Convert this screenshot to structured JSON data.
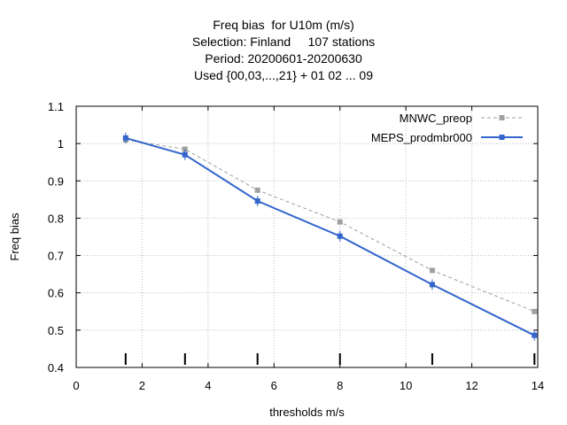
{
  "title_lines": [
    "Freq bias  for U10m (m/s)",
    "Selection: Finland     107 stations",
    "Period: 20200601-20200630",
    "Used {00,03,...,21} + 01 02 ... 09"
  ],
  "chart_data": {
    "type": "line",
    "xlabel": "thresholds m/s",
    "ylabel": "Freq bias",
    "xlim": [
      0,
      14
    ],
    "ylim": [
      0.4,
      1.1
    ],
    "xticks": [
      "0",
      "2",
      "4",
      "6",
      "8",
      "10",
      "12",
      "14"
    ],
    "yticks": [
      "0.4",
      "0.5",
      "0.6",
      "0.7",
      "0.8",
      "0.9",
      "1",
      "1.1"
    ],
    "grid": true,
    "legend_position": "top-right",
    "threshold_markers": [
      1.5,
      3.3,
      5.5,
      8.0,
      10.8,
      13.9
    ],
    "series": [
      {
        "name": "MNWC_preop",
        "color": "#a0a0a0",
        "style": "dashed",
        "x": [
          1.5,
          3.3,
          5.5,
          8.0,
          10.8,
          13.9
        ],
        "y": [
          1.01,
          0.985,
          0.875,
          0.79,
          0.66,
          0.55
        ]
      },
      {
        "name": "MEPS_prodmbr000",
        "color": "#3366cc",
        "style": "solid",
        "x": [
          1.5,
          3.3,
          5.5,
          8.0,
          10.8,
          13.9
        ],
        "y": [
          1.015,
          0.97,
          0.846,
          0.752,
          0.622,
          0.486
        ]
      }
    ]
  }
}
